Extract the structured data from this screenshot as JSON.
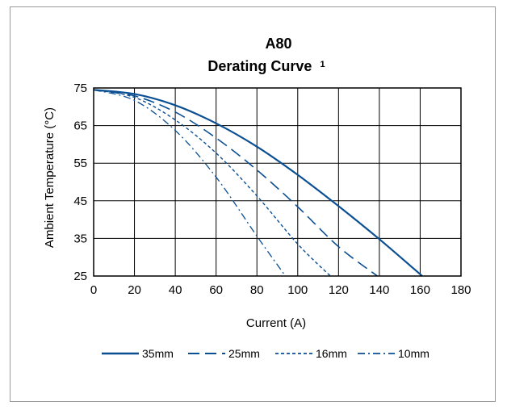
{
  "chart_data": {
    "type": "line",
    "title": "A80",
    "subtitle": "Derating Curve",
    "subtitle_superscript": "1",
    "xlabel": "Current (A)",
    "ylabel": "Ambient  Temperature (°C)",
    "xlim": [
      0,
      180
    ],
    "ylim": [
      25,
      75
    ],
    "xticks": [
      "0",
      "20",
      "40",
      "60",
      "80",
      "100",
      "120",
      "140",
      "160",
      "180"
    ],
    "yticks": [
      "25",
      "35",
      "45",
      "55",
      "65",
      "75"
    ],
    "grid": true,
    "legend_position": "bottom",
    "line_color": "#0b4f93",
    "series": [
      {
        "name": "35mm",
        "dash": "solid",
        "x": [
          0,
          20,
          40,
          60,
          80,
          100,
          120,
          140,
          161
        ],
        "y": [
          74.5,
          73.4,
          70.4,
          65.6,
          59.4,
          51.9,
          43.6,
          34.8,
          25
        ]
      },
      {
        "name": "25mm",
        "dash": "long-dash",
        "x": [
          0,
          20,
          40,
          60,
          80,
          100,
          120,
          139
        ],
        "y": [
          74.5,
          72.9,
          68.6,
          61.7,
          53.2,
          43.4,
          32.8,
          25
        ]
      },
      {
        "name": "16mm",
        "dash": "short-dash",
        "x": [
          0,
          20,
          40,
          60,
          80,
          100,
          116
        ],
        "y": [
          74.5,
          72.5,
          66.5,
          57.7,
          46.3,
          33.5,
          25
        ]
      },
      {
        "name": "10mm",
        "dash": "dash-dot",
        "x": [
          0,
          20,
          40,
          60,
          80,
          94
        ],
        "y": [
          74.5,
          71.7,
          63.7,
          51.3,
          35.6,
          25
        ]
      }
    ]
  }
}
